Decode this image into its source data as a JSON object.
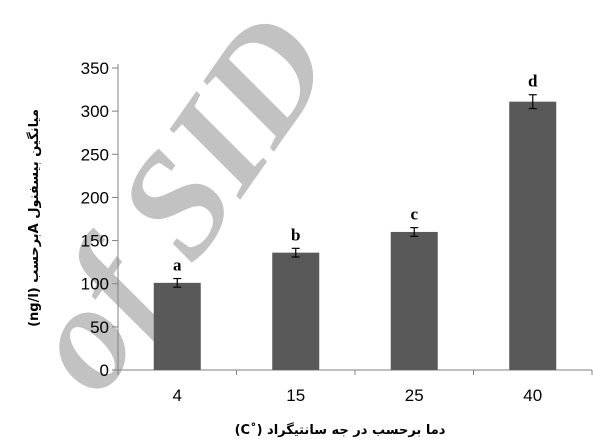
{
  "watermark": "of SID",
  "chart_data": {
    "type": "bar",
    "categories": [
      "4",
      "15",
      "25",
      "40"
    ],
    "values": [
      101,
      136,
      160,
      311
    ],
    "errors": [
      5,
      5,
      5,
      8
    ],
    "labels": [
      "a",
      "b",
      "c",
      "d"
    ],
    "ylim": [
      0,
      350
    ],
    "yticks": [
      0,
      50,
      100,
      150,
      200,
      250,
      300,
      350
    ],
    "xlabel": "دما برحسب در جه سانتیگراد (˚C)",
    "ylabel": "میانگین بیسفنول Aبرحسب (ng/l)",
    "grid": false,
    "bar_color": "#595959"
  }
}
